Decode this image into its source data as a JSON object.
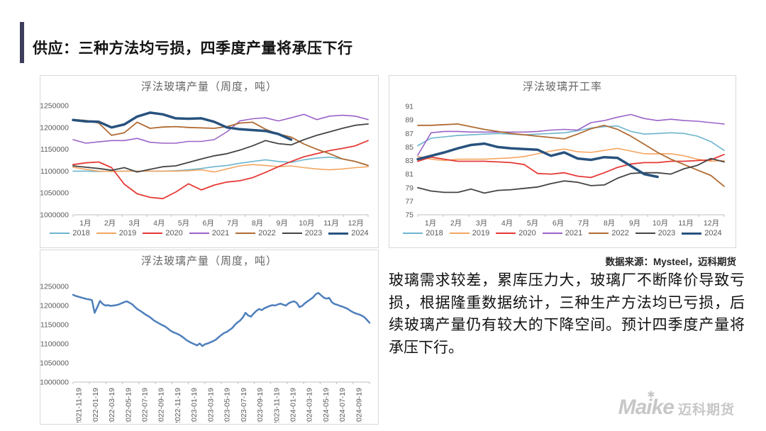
{
  "slide": {
    "title": "供应：三种方法均亏损，四季度产量将承压下行",
    "source_note": "数据来源：Mysteel，迈科期货",
    "commentary": "玻璃需求较差，累库压力大，玻璃厂不断降价导致亏损，根据隆重数据统计，三种生产方法均已亏损，后续玻璃产量仍有较大的下降空间。预计四季度产量将承压下行。",
    "logo": {
      "en": "Maike",
      "cn": "迈科期货",
      "star_icon": "✱"
    }
  },
  "colors": {
    "accent_bar": "#3d3d5c",
    "card_border": "#d9d9d9",
    "axis": "#bfbfbf",
    "tick_text": "#595959",
    "y2018": "#6db5cd",
    "y2019": "#f3a661",
    "y2020": "#e63a35",
    "y2021": "#9a63c8",
    "y2022": "#b06b33",
    "y2023": "#444444",
    "y2024": "#28527e",
    "weekly_line": "#4e7fbc",
    "logo_gray": "#c7c7c7"
  },
  "chart_data": [
    {
      "type": "line",
      "title": "浮法玻璃产量（周度，吨）",
      "xlabel": "",
      "ylabel": "",
      "ylim": [
        1000000,
        1250000
      ],
      "yticks": [
        1000000,
        1050000,
        1100000,
        1150000,
        1200000,
        1250000
      ],
      "xticks": [
        "1月",
        "2月",
        "3月",
        "4月",
        "5月",
        "6月",
        "7月",
        "8月",
        "9月",
        "10月",
        "11月",
        "12月"
      ],
      "grid": false,
      "legend_position": "bottom",
      "points": 24,
      "layout": {
        "margins": {
          "l": 46,
          "t": 16,
          "r": 14,
          "b": 18
        },
        "rotate_xticks": false,
        "xtick_offset": 0.5
      },
      "series": [
        {
          "name": "2018",
          "color": "#6db5cd",
          "width": 1.6,
          "values": [
            1100000,
            1100000,
            1099000,
            1100000,
            1100000,
            1100000,
            1100000,
            1100000,
            1101000,
            1103000,
            1106000,
            1110000,
            1113000,
            1118000,
            1122000,
            1126000,
            1122000,
            1120000,
            1126000,
            1130000,
            1132000,
            1128000,
            1122000,
            1113000
          ]
        },
        {
          "name": "2019",
          "color": "#f3a661",
          "width": 1.6,
          "values": [
            1109000,
            1104000,
            1100000,
            1099000,
            1100000,
            1100000,
            1100000,
            1100000,
            1100000,
            1101000,
            1103000,
            1098000,
            1105000,
            1112000,
            1115000,
            1113000,
            1110000,
            1112000,
            1108000,
            1105000,
            1103000,
            1105000,
            1108000,
            1110000
          ]
        },
        {
          "name": "2020",
          "color": "#e63a35",
          "width": 1.8,
          "values": [
            1115000,
            1119000,
            1121000,
            1108000,
            1070000,
            1048000,
            1040000,
            1037000,
            1052000,
            1071000,
            1057000,
            1068000,
            1075000,
            1078000,
            1085000,
            1097000,
            1110000,
            1122000,
            1133000,
            1140000,
            1147000,
            1152000,
            1158000,
            1170000
          ]
        },
        {
          "name": "2021",
          "color": "#9a63c8",
          "width": 1.6,
          "values": [
            1172000,
            1164000,
            1167000,
            1170000,
            1170000,
            1175000,
            1166000,
            1164000,
            1164000,
            1168000,
            1168000,
            1172000,
            1190000,
            1215000,
            1220000,
            1222000,
            1215000,
            1222000,
            1230000,
            1218000,
            1226000,
            1228000,
            1226000,
            1218000
          ]
        },
        {
          "name": "2022",
          "color": "#b06b33",
          "width": 1.8,
          "values": [
            1218000,
            1216000,
            1210000,
            1182000,
            1188000,
            1212000,
            1198000,
            1201000,
            1202000,
            1200000,
            1199000,
            1198000,
            1202000,
            1210000,
            1212000,
            1196000,
            1185000,
            1178000,
            1162000,
            1150000,
            1140000,
            1128000,
            1122000,
            1113000
          ]
        },
        {
          "name": "2023",
          "color": "#444444",
          "width": 1.8,
          "values": [
            1112000,
            1109000,
            1106000,
            1102000,
            1108000,
            1098000,
            1104000,
            1110000,
            1112000,
            1120000,
            1128000,
            1135000,
            1140000,
            1148000,
            1158000,
            1170000,
            1163000,
            1160000,
            1172000,
            1182000,
            1190000,
            1198000,
            1205000,
            1208000
          ]
        },
        {
          "name": "2024",
          "color": "#28527e",
          "width": 3.5,
          "values": [
            1217000,
            1214000,
            1213000,
            1200000,
            1207000,
            1225000,
            1234000,
            1230000,
            1221000,
            1220000,
            1221000,
            1213000,
            1200000,
            1196000,
            1194000,
            1192000,
            1185000,
            1172000
          ]
        }
      ]
    },
    {
      "type": "line",
      "title": "浮法玻璃开工率",
      "xlabel": "",
      "ylabel": "",
      "ylim": [
        75,
        91
      ],
      "yticks": [
        75,
        77,
        79,
        81,
        83,
        85,
        87,
        89,
        91
      ],
      "xticks": [
        "1月",
        "2月",
        "3月",
        "4月",
        "5月",
        "6月",
        "7月",
        "8月",
        "9月",
        "10月",
        "11月",
        "12月"
      ],
      "grid": false,
      "legend_position": "bottom",
      "points": 24,
      "layout": {
        "margins": {
          "l": 40,
          "t": 17,
          "r": 16,
          "b": 18
        },
        "rotate_xticks": false,
        "xtick_offset": 0.5
      },
      "series": [
        {
          "name": "2018",
          "color": "#6db5cd",
          "width": 1.6,
          "values": [
            85.2,
            86.3,
            86.5,
            86.7,
            86.8,
            86.9,
            87.0,
            86.9,
            86.8,
            86.9,
            87.0,
            87.1,
            87.4,
            87.8,
            88.0,
            88.1,
            87.3,
            86.9,
            87.0,
            87.1,
            87.0,
            86.6,
            85.8,
            84.5
          ]
        },
        {
          "name": "2019",
          "color": "#f3a661",
          "width": 1.6,
          "values": [
            83.6,
            83.2,
            83.0,
            83.2,
            83.2,
            83.2,
            83.3,
            83.4,
            83.6,
            84.0,
            84.4,
            84.7,
            84.3,
            84.2,
            84.5,
            84.8,
            84.4,
            84.0,
            84.0,
            84.0,
            83.7,
            83.2,
            82.9,
            83.0
          ]
        },
        {
          "name": "2020",
          "color": "#e63a35",
          "width": 1.8,
          "values": [
            82.9,
            83.5,
            83.2,
            82.9,
            82.9,
            82.9,
            82.8,
            82.7,
            82.4,
            81.1,
            81.0,
            81.2,
            80.7,
            80.5,
            81.2,
            82.0,
            82.5,
            82.7,
            82.7,
            82.9,
            82.9,
            83.0,
            83.1,
            83.9
          ]
        },
        {
          "name": "2021",
          "color": "#9a63c8",
          "width": 1.6,
          "values": [
            83.8,
            87.1,
            87.3,
            87.3,
            87.2,
            87.2,
            87.2,
            87.2,
            87.2,
            87.3,
            87.5,
            87.6,
            87.5,
            88.6,
            88.9,
            89.4,
            89.8,
            89.2,
            88.9,
            89.1,
            88.9,
            88.8,
            88.6,
            88.4
          ]
        },
        {
          "name": "2022",
          "color": "#b06b33",
          "width": 1.8,
          "values": [
            88.2,
            88.2,
            88.3,
            88.4,
            88.0,
            87.6,
            87.3,
            87.0,
            86.8,
            86.6,
            86.4,
            86.2,
            86.9,
            87.7,
            88.2,
            87.6,
            86.6,
            85.4,
            84.2,
            83.2,
            82.4,
            81.6,
            80.8,
            79.2
          ]
        },
        {
          "name": "2023",
          "color": "#444444",
          "width": 1.8,
          "values": [
            79.0,
            78.5,
            78.3,
            78.3,
            78.8,
            78.2,
            78.6,
            78.7,
            78.9,
            79.1,
            79.6,
            80.0,
            79.8,
            79.3,
            79.4,
            80.4,
            81.1,
            81.2,
            81.2,
            81.0,
            81.8,
            82.3,
            83.3,
            82.8
          ]
        },
        {
          "name": "2024",
          "color": "#28527e",
          "width": 3.5,
          "values": [
            83.2,
            83.7,
            84.2,
            84.8,
            85.3,
            85.5,
            85.0,
            84.8,
            84.7,
            84.6,
            83.7,
            84.2,
            83.3,
            83.1,
            83.5,
            83.4,
            82.2,
            81.0,
            80.6
          ]
        }
      ]
    },
    {
      "type": "line",
      "title": "浮法玻璃产量（周度，吨）",
      "xlabel": "",
      "ylabel": "",
      "ylim": [
        1000000,
        1250000
      ],
      "yticks": [
        1000000,
        1050000,
        1100000,
        1150000,
        1200000,
        1250000
      ],
      "xticks": [
        "2021-11-19",
        "2022-01-19",
        "2022-03-19",
        "2022-05-19",
        "2022-07-19",
        "2022-09-19",
        "2022-11-19",
        "2023-01-19",
        "2023-03-19",
        "2023-05-19",
        "2023-07-19",
        "2023-09-19",
        "2023-11-19",
        "2024-01-19",
        "2024-03-19",
        "2024-05-19",
        "2024-07-19",
        "2024-09-19"
      ],
      "grid": false,
      "legend_position": "none",
      "points": 111,
      "layout": {
        "margins": {
          "l": 46,
          "t": 25,
          "r": 12,
          "b": 57
        },
        "rotate_xticks": true,
        "xtick_offset": 0.35
      },
      "series": [
        {
          "name": "浮法玻璃产量",
          "color": "#4e7fbc",
          "width": 2.5,
          "values": [
            1228000,
            1225000,
            1223000,
            1221000,
            1219000,
            1217000,
            1216000,
            1214000,
            1181000,
            1196000,
            1212000,
            1204000,
            1200000,
            1201000,
            1199000,
            1200000,
            1201000,
            1203000,
            1206000,
            1209000,
            1211000,
            1207000,
            1203000,
            1196000,
            1190000,
            1186000,
            1181000,
            1176000,
            1172000,
            1167000,
            1161000,
            1157000,
            1153000,
            1149000,
            1146000,
            1141000,
            1135000,
            1131000,
            1128000,
            1125000,
            1121000,
            1116000,
            1110000,
            1106000,
            1102000,
            1099000,
            1096000,
            1101000,
            1094000,
            1099000,
            1101000,
            1104000,
            1107000,
            1111000,
            1117000,
            1123000,
            1128000,
            1131000,
            1136000,
            1141000,
            1149000,
            1156000,
            1161000,
            1169000,
            1181000,
            1174000,
            1171000,
            1179000,
            1186000,
            1191000,
            1188000,
            1193000,
            1196000,
            1199000,
            1201000,
            1200000,
            1203000,
            1205000,
            1202000,
            1200000,
            1206000,
            1209000,
            1211000,
            1207000,
            1196000,
            1199000,
            1206000,
            1211000,
            1216000,
            1221000,
            1229000,
            1233000,
            1227000,
            1221000,
            1218000,
            1220000,
            1209000,
            1204000,
            1202000,
            1199000,
            1197000,
            1194000,
            1191000,
            1186000,
            1182000,
            1179000,
            1177000,
            1174000,
            1170000,
            1163000,
            1155000
          ]
        }
      ]
    }
  ]
}
